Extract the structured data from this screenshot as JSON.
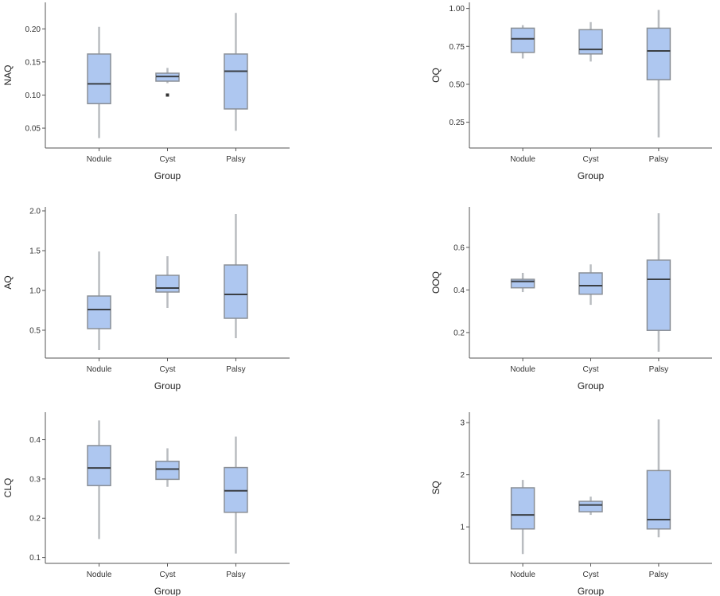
{
  "chart_data": [
    {
      "type": "boxplot",
      "ylabel": "NAQ",
      "xlabel": "Group",
      "categories": [
        "Nodule",
        "Cyst",
        "Palsy"
      ],
      "ylim": [
        0.02,
        0.24
      ],
      "yticks": [
        0.05,
        0.1,
        0.15,
        0.2
      ],
      "ytick_labels": [
        "0.05",
        "0.10",
        "0.15",
        "0.20"
      ],
      "boxes": [
        {
          "whisker_low": 0.035,
          "q1": 0.087,
          "median": 0.117,
          "q3": 0.162,
          "whisker_high": 0.203,
          "outliers": []
        },
        {
          "whisker_low": 0.118,
          "q1": 0.121,
          "median": 0.128,
          "q3": 0.133,
          "whisker_high": 0.141,
          "outliers": [
            0.1
          ]
        },
        {
          "whisker_low": 0.046,
          "q1": 0.079,
          "median": 0.136,
          "q3": 0.162,
          "whisker_high": 0.224,
          "outliers": []
        }
      ]
    },
    {
      "type": "boxplot",
      "ylabel": "OQ",
      "xlabel": "Group",
      "categories": [
        "Nodule",
        "Cyst",
        "Palsy"
      ],
      "ylim": [
        0.08,
        1.04
      ],
      "yticks": [
        0.25,
        0.5,
        0.75,
        1.0
      ],
      "ytick_labels": [
        "0.25",
        "0.50",
        "0.75",
        "1.00"
      ],
      "boxes": [
        {
          "whisker_low": 0.67,
          "q1": 0.71,
          "median": 0.8,
          "q3": 0.87,
          "whisker_high": 0.89,
          "outliers": []
        },
        {
          "whisker_low": 0.65,
          "q1": 0.7,
          "median": 0.73,
          "q3": 0.86,
          "whisker_high": 0.91,
          "outliers": []
        },
        {
          "whisker_low": 0.15,
          "q1": 0.53,
          "median": 0.72,
          "q3": 0.87,
          "whisker_high": 0.99,
          "outliers": []
        }
      ]
    },
    {
      "type": "boxplot",
      "ylabel": "AQ",
      "xlabel": "Group",
      "categories": [
        "Nodule",
        "Cyst",
        "Palsy"
      ],
      "ylim": [
        0.15,
        2.05
      ],
      "yticks": [
        0.5,
        1.0,
        1.5,
        2.0
      ],
      "ytick_labels": [
        "0.5",
        "1.0",
        "1.5",
        "2.0"
      ],
      "boxes": [
        {
          "whisker_low": 0.25,
          "q1": 0.52,
          "median": 0.76,
          "q3": 0.93,
          "whisker_high": 1.49,
          "outliers": []
        },
        {
          "whisker_low": 0.78,
          "q1": 0.98,
          "median": 1.03,
          "q3": 1.19,
          "whisker_high": 1.43,
          "outliers": []
        },
        {
          "whisker_low": 0.4,
          "q1": 0.65,
          "median": 0.95,
          "q3": 1.32,
          "whisker_high": 1.96,
          "outliers": []
        }
      ]
    },
    {
      "type": "boxplot",
      "ylabel": "OOQ",
      "xlabel": "Group",
      "categories": [
        "Nodule",
        "Cyst",
        "Palsy"
      ],
      "ylim": [
        0.08,
        0.79
      ],
      "yticks": [
        0.2,
        0.4,
        0.6
      ],
      "ytick_labels": [
        "0.2",
        "0.4",
        "0.6"
      ],
      "boxes": [
        {
          "whisker_low": 0.39,
          "q1": 0.41,
          "median": 0.44,
          "q3": 0.45,
          "whisker_high": 0.48,
          "outliers": []
        },
        {
          "whisker_low": 0.33,
          "q1": 0.38,
          "median": 0.42,
          "q3": 0.48,
          "whisker_high": 0.52,
          "outliers": []
        },
        {
          "whisker_low": 0.11,
          "q1": 0.21,
          "median": 0.45,
          "q3": 0.54,
          "whisker_high": 0.76,
          "outliers": []
        }
      ]
    },
    {
      "type": "boxplot",
      "ylabel": "CLQ",
      "xlabel": "Group",
      "categories": [
        "Nodule",
        "Cyst",
        "Palsy"
      ],
      "ylim": [
        0.085,
        0.47
      ],
      "yticks": [
        0.1,
        0.2,
        0.3,
        0.4
      ],
      "ytick_labels": [
        "0.1",
        "0.2",
        "0.3",
        "0.4"
      ],
      "boxes": [
        {
          "whisker_low": 0.147,
          "q1": 0.283,
          "median": 0.328,
          "q3": 0.385,
          "whisker_high": 0.449,
          "outliers": []
        },
        {
          "whisker_low": 0.28,
          "q1": 0.299,
          "median": 0.325,
          "q3": 0.345,
          "whisker_high": 0.378,
          "outliers": []
        },
        {
          "whisker_low": 0.11,
          "q1": 0.215,
          "median": 0.27,
          "q3": 0.329,
          "whisker_high": 0.408,
          "outliers": []
        }
      ]
    },
    {
      "type": "boxplot",
      "ylabel": "SQ",
      "xlabel": "Group",
      "categories": [
        "Nodule",
        "Cyst",
        "Palsy"
      ],
      "ylim": [
        0.3,
        3.2
      ],
      "yticks": [
        1,
        2,
        3
      ],
      "ytick_labels": [
        "1",
        "2",
        "3"
      ],
      "boxes": [
        {
          "whisker_low": 0.48,
          "q1": 0.96,
          "median": 1.23,
          "q3": 1.75,
          "whisker_high": 1.9,
          "outliers": []
        },
        {
          "whisker_low": 1.23,
          "q1": 1.29,
          "median": 1.42,
          "q3": 1.49,
          "whisker_high": 1.58,
          "outliers": []
        },
        {
          "whisker_low": 0.8,
          "q1": 0.96,
          "median": 1.14,
          "q3": 2.08,
          "whisker_high": 3.06,
          "outliers": []
        }
      ]
    }
  ],
  "colors": {
    "box_fill": "#aec7f0",
    "box_edge": "#8a8f96",
    "median": "#3b3f44",
    "whisker": "#b9bcc0",
    "axis": "#555555",
    "outlier": "#333333"
  }
}
